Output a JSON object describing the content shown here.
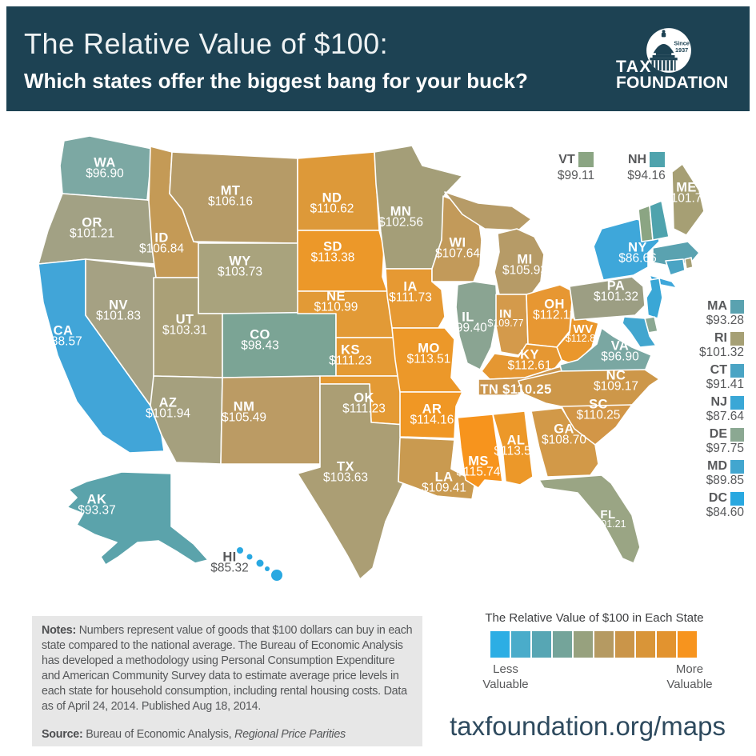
{
  "header": {
    "title": "The Relative Value of $100:",
    "subtitle": "Which states offer the biggest bang for your buck?",
    "bg": "#1d4253",
    "logo": {
      "tax": "TAX",
      "foundation": "FOUNDATION",
      "since1": "Since",
      "since2": "1937"
    }
  },
  "map": {
    "states": [
      {
        "abbr": "WA",
        "value": "$96.90",
        "color": "#7ca8a3"
      },
      {
        "abbr": "OR",
        "value": "$101.21",
        "color": "#a2a184"
      },
      {
        "abbr": "CA",
        "value": "$88.57",
        "color": "#41a5d8"
      },
      {
        "abbr": "NV",
        "value": "$101.83",
        "color": "#a5a183"
      },
      {
        "abbr": "ID",
        "value": "$106.84",
        "color": "#c49a56"
      },
      {
        "abbr": "MT",
        "value": "$106.16",
        "color": "#b69b67"
      },
      {
        "abbr": "WY",
        "value": "$103.73",
        "color": "#a9a37d"
      },
      {
        "abbr": "UT",
        "value": "$103.31",
        "color": "#aaa077"
      },
      {
        "abbr": "CO",
        "value": "$98.43",
        "color": "#7ba495"
      },
      {
        "abbr": "AZ",
        "value": "$101.94",
        "color": "#a5a07e"
      },
      {
        "abbr": "NM",
        "value": "$105.49",
        "color": "#bb9b64"
      },
      {
        "abbr": "ND",
        "value": "$110.62",
        "color": "#dd9939"
      },
      {
        "abbr": "SD",
        "value": "$113.38",
        "color": "#ec9829"
      },
      {
        "abbr": "NE",
        "value": "$110.99",
        "color": "#e29a36"
      },
      {
        "abbr": "KS",
        "value": "$111.23",
        "color": "#e49a34"
      },
      {
        "abbr": "OK",
        "value": "$111.23",
        "color": "#e49a34"
      },
      {
        "abbr": "TX",
        "value": "$103.63",
        "color": "#ab9e74"
      },
      {
        "abbr": "MN",
        "value": "$102.56",
        "color": "#a49e78"
      },
      {
        "abbr": "IA",
        "value": "$111.73",
        "color": "#e69933"
      },
      {
        "abbr": "MO",
        "value": "$113.51",
        "color": "#ec9829"
      },
      {
        "abbr": "AR",
        "value": "$114.16",
        "color": "#f09724"
      },
      {
        "abbr": "LA",
        "value": "$109.41",
        "color": "#c99a50"
      },
      {
        "abbr": "WI",
        "value": "$107.64",
        "color": "#c29a5a"
      },
      {
        "abbr": "IL",
        "value": "$99.40",
        "color": "#8aa492"
      },
      {
        "abbr": "MI",
        "value": "$105.93",
        "color": "#b69b67"
      },
      {
        "abbr": "IN",
        "value": "$109.77",
        "color": "#d49a4b",
        "small": true
      },
      {
        "abbr": "OH",
        "value": "$112.11",
        "color": "#e79732"
      },
      {
        "abbr": "WV",
        "value": "$112.87",
        "color": "#ea972c",
        "small": true
      },
      {
        "abbr": "KY",
        "value": "$112.61",
        "color": "#e59732"
      },
      {
        "abbr": "TN",
        "value": "$110.25",
        "color": "#cb9750",
        "single": true
      },
      {
        "abbr": "VA",
        "value": "$96.90",
        "color": "#7aa7a2"
      },
      {
        "abbr": "NC",
        "value": "$109.17",
        "color": "#cd9749"
      },
      {
        "abbr": "SC",
        "value": "$110.25",
        "color": "#d29647"
      },
      {
        "abbr": "GA",
        "value": "$108.70",
        "color": "#d29948"
      },
      {
        "abbr": "AL",
        "value": "$113.51",
        "color": "#ec9829"
      },
      {
        "abbr": "MS",
        "value": "$115.74",
        "color": "#f7941d"
      },
      {
        "abbr": "FL",
        "value": "$101.21",
        "color": "#9aa584",
        "small": true
      },
      {
        "abbr": "PA",
        "value": "$101.32",
        "color": "#9c9e83"
      },
      {
        "abbr": "NY",
        "value": "$86.66",
        "color": "#3ea7da"
      },
      {
        "abbr": "NJ",
        "value": "$87.64",
        "color": "#3aa7d6"
      },
      {
        "abbr": "DE",
        "value": "$97.75",
        "color": "#8ba892"
      },
      {
        "abbr": "MD",
        "value": "$89.85",
        "color": "#42a6cf"
      },
      {
        "abbr": "VT",
        "value": "$99.11",
        "color": "#8ba583"
      },
      {
        "abbr": "NH",
        "value": "$94.16",
        "color": "#4fa3ad"
      },
      {
        "abbr": "MA",
        "value": "$93.28",
        "color": "#5aa2b0"
      },
      {
        "abbr": "RI",
        "value": "$101.32",
        "color": "#a6a075"
      },
      {
        "abbr": "CT",
        "value": "$91.41",
        "color": "#4aa4c4"
      },
      {
        "abbr": "ME",
        "value": "$101.73",
        "color": "#a69f74"
      },
      {
        "abbr": "AK",
        "value": "$93.37",
        "color": "#5ba3ab"
      },
      {
        "abbr": "HI",
        "value": "$85.32",
        "color": "#29a8e1",
        "dark": true
      }
    ]
  },
  "callouts": [
    {
      "abbr": "VT",
      "value": "$99.11",
      "color": "#8ba583"
    },
    {
      "abbr": "NH",
      "value": "$94.16",
      "color": "#4fa3ad"
    }
  ],
  "east_list": [
    {
      "abbr": "MA",
      "value": "$93.28",
      "color": "#5aa2b0"
    },
    {
      "abbr": "RI",
      "value": "$101.32",
      "color": "#a6a075"
    },
    {
      "abbr": "CT",
      "value": "$91.41",
      "color": "#4aa4c4"
    },
    {
      "abbr": "NJ",
      "value": "$87.64",
      "color": "#3aa7d6"
    },
    {
      "abbr": "DE",
      "value": "$97.75",
      "color": "#8ba892"
    },
    {
      "abbr": "MD",
      "value": "$89.85",
      "color": "#42a6cf"
    },
    {
      "abbr": "DC",
      "value": "$84.60",
      "color": "#29a8e0"
    }
  ],
  "legend": {
    "title": "The Relative Value of $100 in Each State",
    "colors": [
      "#2caee4",
      "#4aacca",
      "#57a6b4",
      "#74a49a",
      "#97a17e",
      "#b59a62",
      "#ca9549",
      "#d99538",
      "#e2932f",
      "#f7941e"
    ],
    "less1": "Less",
    "less2": "Valuable",
    "more1": "More",
    "more2": "Valuable"
  },
  "notes": {
    "label": "Notes:",
    "body": "Numbers represent value of goods that $100 dollars can buy in each state compared to the national average. The Bureau of Economic Analysis has developed a methodology using Personal Consumption Expenditure and American Community Survey data to estimate average price levels in each state for household consumption, including rental housing costs.  Data as of April 24, 2014. Published Aug 18, 2014.",
    "source_label": "Source:",
    "source_text": "Bureau of Economic Analysis, ",
    "source_italic": "Regional Price Parities"
  },
  "footer": {
    "url": "taxfoundation.org/maps"
  }
}
